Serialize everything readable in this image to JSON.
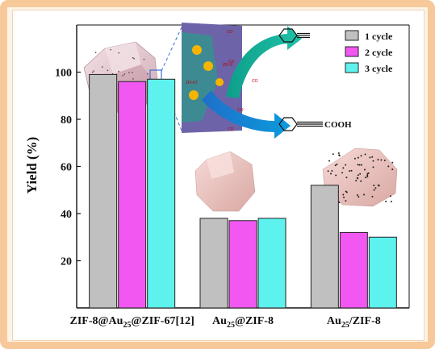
{
  "chart_data": {
    "type": "bar",
    "categories": [
      {
        "label": "ZIF-8@Au",
        "sub": "25",
        "rest": "@ZIF-67[12]",
        "sep": ""
      },
      {
        "label": "Au",
        "sub": "25",
        "rest": "@ZIF-8",
        "sep": ""
      },
      {
        "label": "Au",
        "sub": "25",
        "rest": "/ZIF-8",
        "sep": ""
      }
    ],
    "series": [
      {
        "name": "1 cycle",
        "color": "#c0c0c0",
        "values": [
          99,
          38,
          52
        ]
      },
      {
        "name": "2 cycle",
        "color": "#f257f2",
        "values": [
          96,
          37,
          32
        ]
      },
      {
        "name": "3 cycle",
        "color": "#5ef2ee",
        "values": [
          97,
          38,
          30
        ]
      }
    ],
    "ylabel": "Yield (%)",
    "ylim": [
      0,
      120
    ],
    "yticks": [
      20,
      40,
      60,
      80,
      100
    ],
    "legend_position": "top-right"
  },
  "inset": {
    "product_label": "COOH",
    "co2_label": "CO",
    "co2_sub": "2",
    "core_label": "ZIF-67",
    "shell_label": "ZIF-8"
  }
}
